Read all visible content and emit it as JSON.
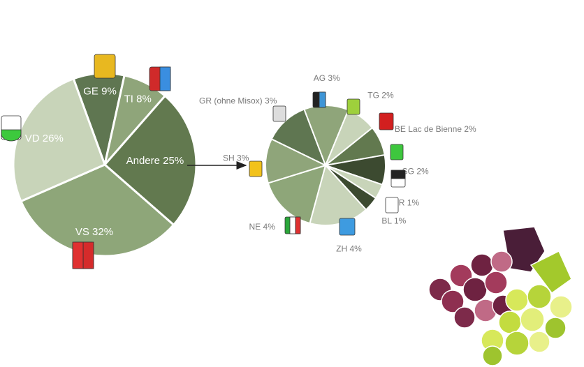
{
  "chart_data": [
    {
      "type": "pie",
      "categories": [
        "GE",
        "TI",
        "Andere",
        "VS",
        "VD"
      ],
      "values": [
        9,
        8,
        25,
        32,
        26
      ],
      "value_labels": [
        "9%",
        "8%",
        "25%",
        "32%",
        "26%"
      ],
      "colors": [
        "#5f7651",
        "#8fa57a",
        "#62794f",
        "#8ea679",
        "#c8d4b9"
      ]
    },
    {
      "type": "pie",
      "categories": [
        "GR (ohne Misox)",
        "AG",
        "TG",
        "BE Lac de Bienne",
        "SG",
        "FR",
        "BL",
        "ZH",
        "NE",
        "SH"
      ],
      "values": [
        3,
        3,
        2,
        2,
        2,
        1,
        1,
        4,
        4,
        3
      ],
      "value_labels": [
        "3%",
        "3%",
        "2%",
        "2%",
        "2%",
        "1%",
        "1%",
        "4%",
        "4%",
        "3%"
      ],
      "colors": [
        "#5f7651",
        "#8fa57a",
        "#c8d4b9",
        "#62794f",
        "#3c4a30",
        "#c8d4b9",
        "#3c4a30",
        "#c8d4b9",
        "#8ea679",
        "#8fa57a"
      ]
    }
  ]
}
